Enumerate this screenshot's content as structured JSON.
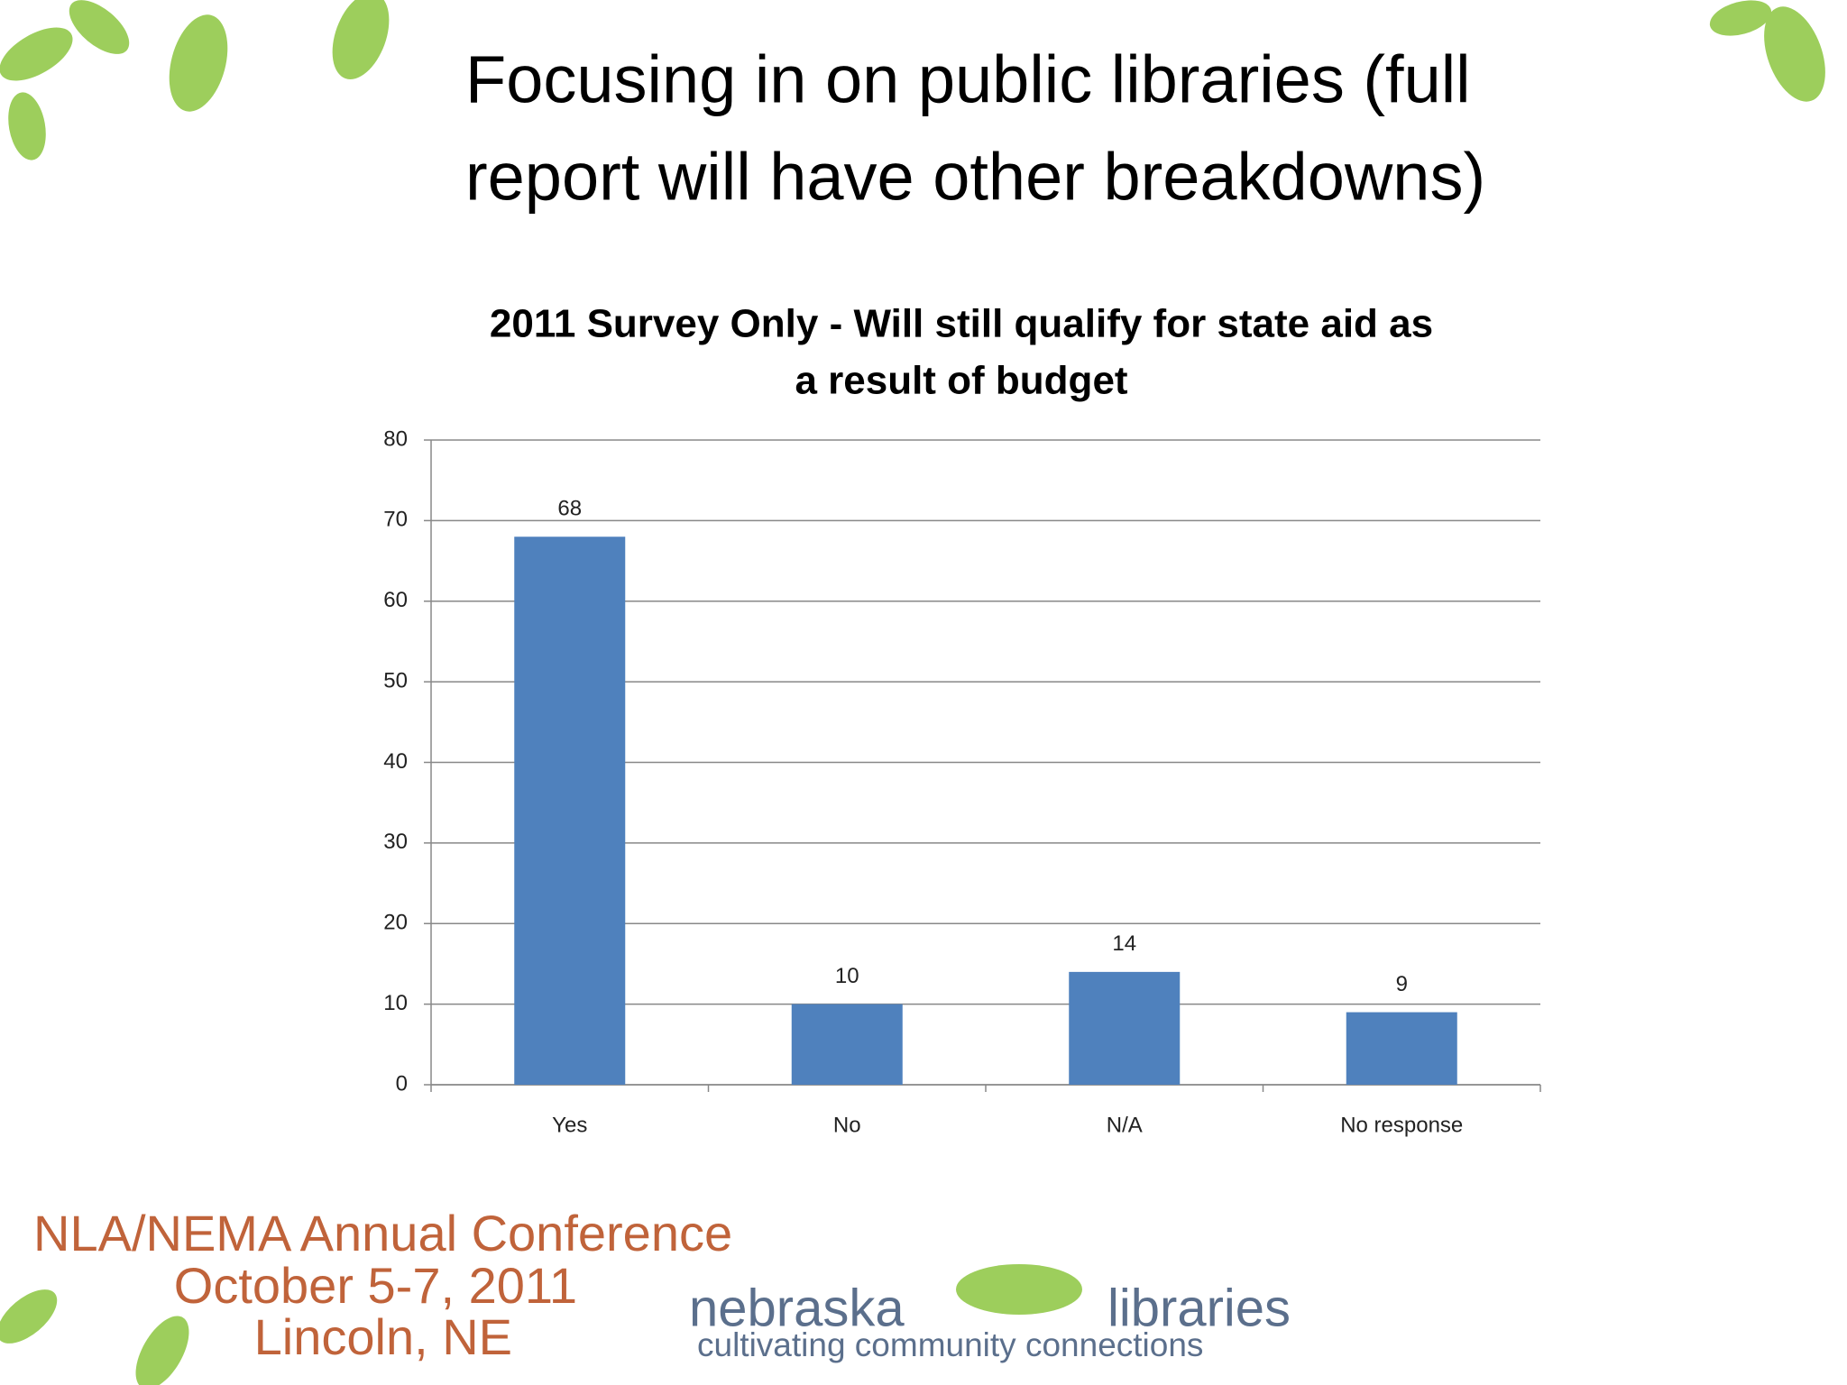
{
  "title": [
    "Focusing in on public libraries (full",
    "report will have other breakdowns)"
  ],
  "chart_data": {
    "type": "bar",
    "title": [
      "2011 Survey Only - Will still qualify for state aid as",
      "a result of budget"
    ],
    "categories": [
      "Yes",
      "No",
      "N/A",
      "No response"
    ],
    "values": [
      68,
      10,
      14,
      9
    ],
    "color": "#4f81bd",
    "ylim": [
      0,
      80
    ],
    "yticks": [
      0,
      10,
      20,
      30,
      40,
      50,
      60,
      70,
      80
    ],
    "grid": true
  },
  "footer": {
    "conference": [
      "NLA/NEMA Annual Conference",
      "October 5-7, 2011",
      "Lincoln, NE"
    ],
    "logo": {
      "left": "nebraska",
      "right": "libraries",
      "tagline": "cultivating community connections"
    }
  }
}
